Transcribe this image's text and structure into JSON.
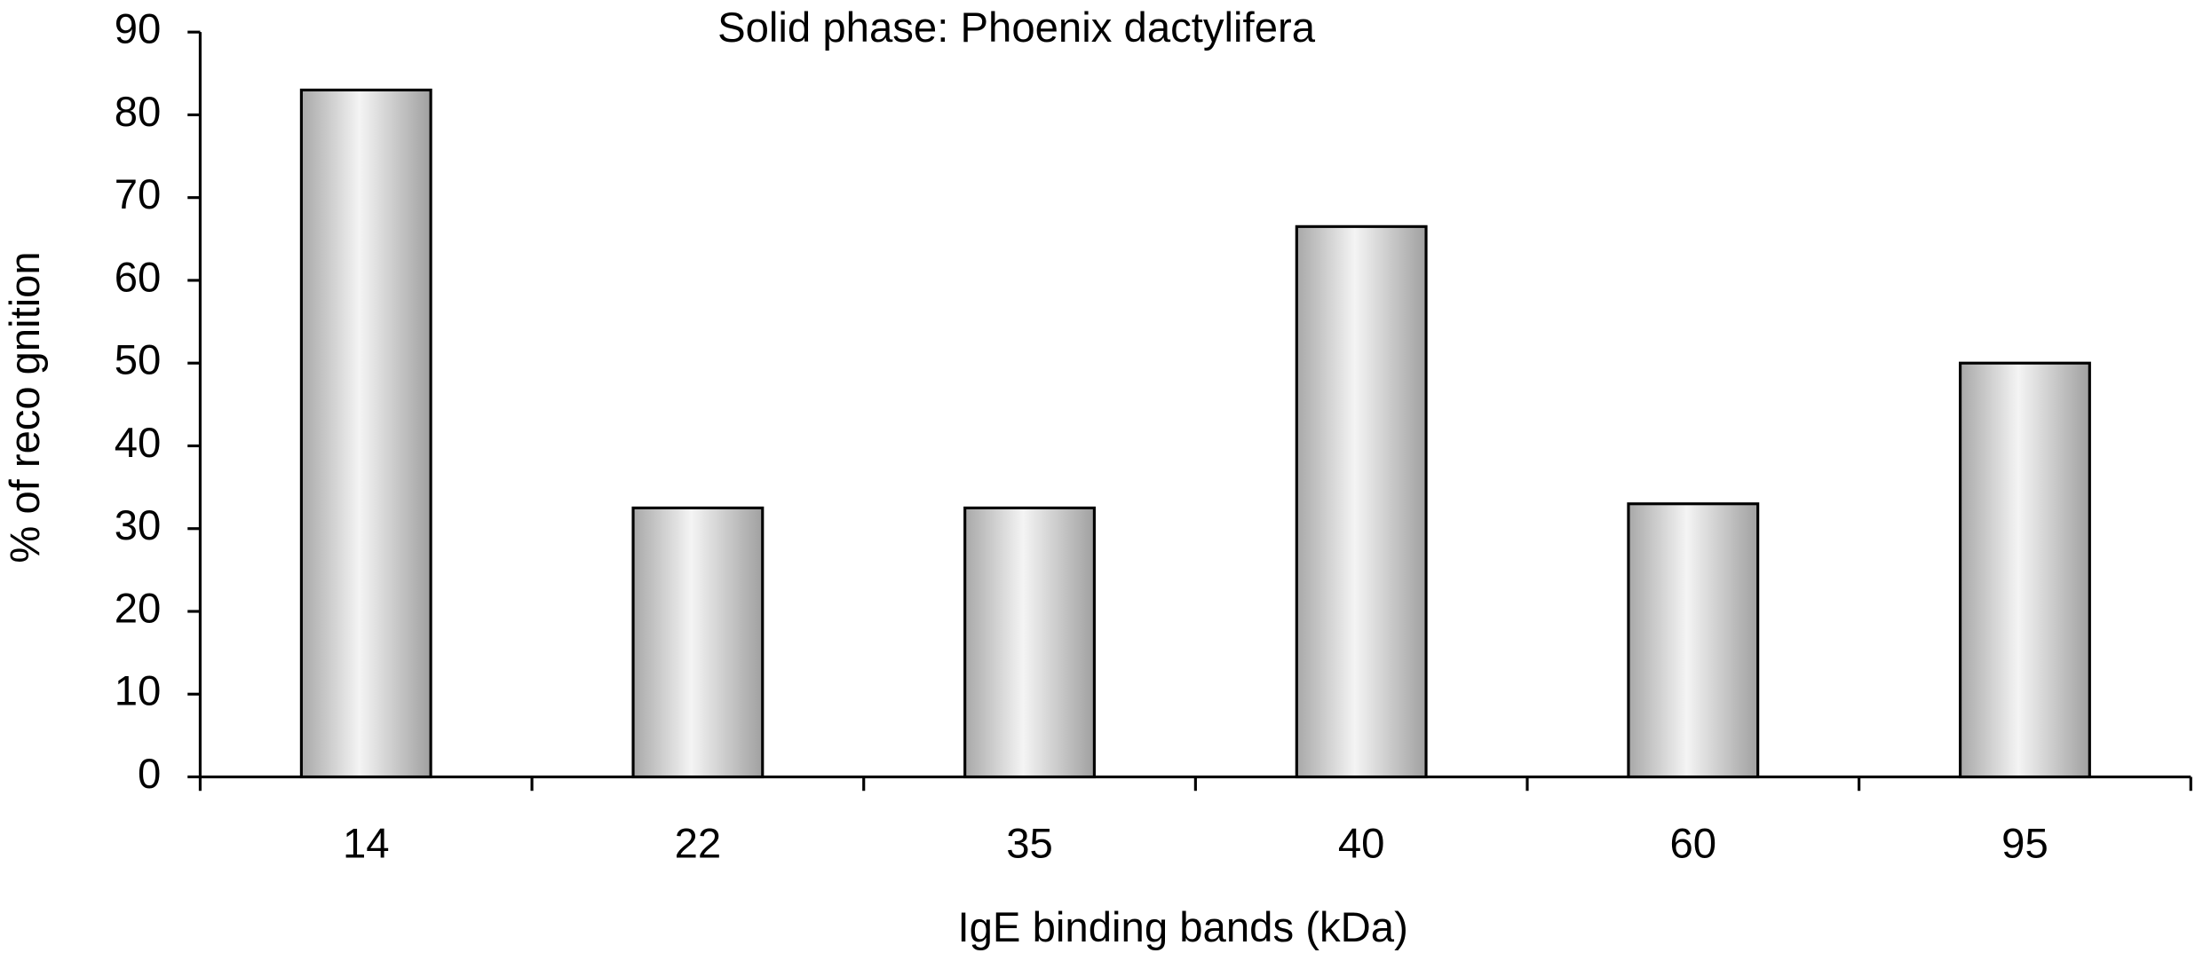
{
  "chart_data": {
    "type": "bar",
    "title": "Solid phase: Phoenix dactylifera",
    "x_label": "IgE binding bands (kDa)",
    "y_label": "% of reco gnition",
    "categories": [
      "14",
      "22",
      "35",
      "40",
      "60",
      "95"
    ],
    "values": [
      83,
      32.5,
      32.5,
      66.5,
      33,
      50
    ],
    "color": "#d8d8d8",
    "ylim": [
      0,
      90
    ],
    "yticks": [
      0,
      10,
      20,
      30,
      40,
      50,
      60,
      70,
      80,
      90
    ],
    "grid": false
  }
}
